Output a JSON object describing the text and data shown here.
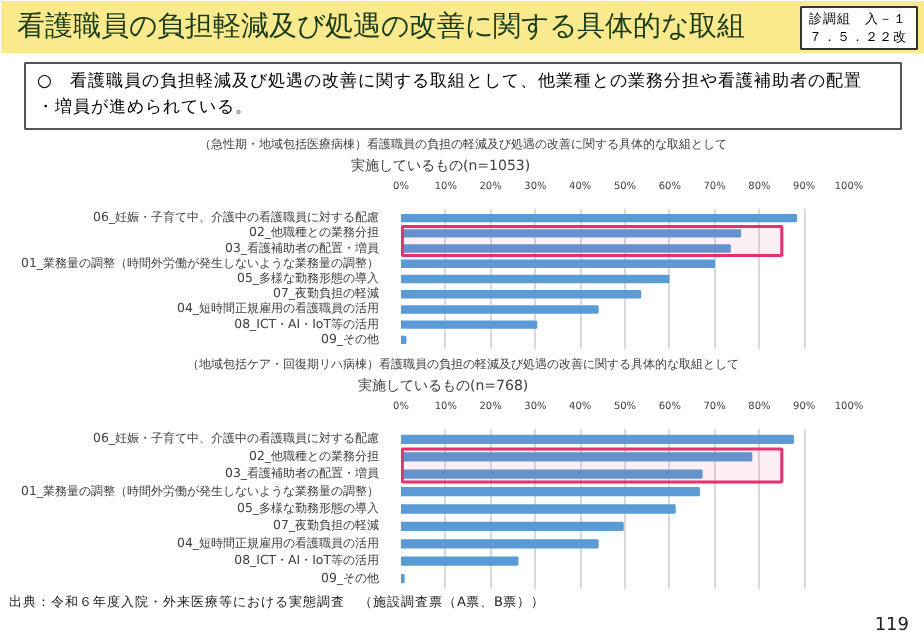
{
  "chart_data": [
    {
      "type": "other",
      "title": "看護職員の負担軽減及び処遇の改善に関する具体的な取組",
      "annotations": [
        "診調組　入－１",
        "７．５．２２改",
        "○　看護職員の負担軽減及び処遇の改善に関する取組として、他業種との業務分担や看護補助者の配置・増員が進められている。"
      ]
    },
    {
      "type": "bar",
      "orientation": "horizontal",
      "title": "（急性期・地域包括医療病棟）看護職員の負担の軽減及び処遇の改善に関する具体的な取組として",
      "subtitle": "実施しているもの(n=1053)",
      "categories": [
        "06_妊娠・子育て中、介護中の看護職員に対する配慮",
        "02_他職種との業務分担",
        "03_看護補助者の配置・増員",
        "01_業務量の調整（時間外労働が発生しないような業務量の調整）",
        "05_多様な勤務形態の導入",
        "07_夜勤負担の軽減",
        "04_短時間正規雇用の看護職員の活用",
        "08_ICT・AI・IoT等の活用",
        "09_その他"
      ],
      "values": [
        88.2,
        75.7,
        73.4,
        69.9,
        59.7,
        53.4,
        43.9,
        30.2,
        1
      ],
      "color": "#5b9bd5",
      "xlim": [
        0,
        100
      ],
      "xticks": [
        {
          "value": 0,
          "label": "0%"
        },
        {
          "value": 10,
          "label": "10%"
        },
        {
          "value": 20,
          "label": "20%"
        },
        {
          "value": 30,
          "label": "30%"
        },
        {
          "value": 40,
          "label": "40%"
        },
        {
          "value": 50,
          "label": "50%"
        },
        {
          "value": 60,
          "label": "60%"
        },
        {
          "value": 70,
          "label": "70%"
        },
        {
          "value": 80,
          "label": "80%"
        },
        {
          "value": 90,
          "label": "90%"
        },
        {
          "value": 100,
          "label": "100%"
        }
      ],
      "grid": "x",
      "bands": [
        {
          "axis": "y",
          "from": "02_他職種との業務分担",
          "to": "03_看護補助者の配置・増員",
          "color": "#e8306f"
        }
      ]
    },
    {
      "type": "bar",
      "orientation": "horizontal",
      "title": "（地域包括ケア・回復期リハ病棟）看護職員の負担の軽減及び処遇の改善に関する具体的な取組として",
      "subtitle": "実施しているもの(n=768)",
      "categories": [
        "06_妊娠・子育て中、介護中の看護職員に対する配慮",
        "02_他職種との業務分担",
        "03_看護補助者の配置・増員",
        "01_業務量の調整（時間外労働が発生しないような業務量の調整）",
        "05_多様な勤務形態の導入",
        "07_夜勤負担の軽減",
        "04_短時間正規雇用の看護職員の活用",
        "08_ICT・AI・IoT等の活用",
        "09_その他"
      ],
      "values": [
        87.5,
        78.2,
        67.1,
        66.5,
        61.1,
        49.5,
        43.9,
        26.0,
        0.6
      ],
      "color": "#5b9bd5",
      "xlim": [
        0,
        100
      ],
      "xticks": [
        {
          "value": 0,
          "label": "0%"
        },
        {
          "value": 10,
          "label": "10%"
        },
        {
          "value": 20,
          "label": "20%"
        },
        {
          "value": 30,
          "label": "30%"
        },
        {
          "value": 40,
          "label": "40%"
        },
        {
          "value": 50,
          "label": "50%"
        },
        {
          "value": 60,
          "label": "60%"
        },
        {
          "value": 70,
          "label": "70%"
        },
        {
          "value": 80,
          "label": "80%"
        },
        {
          "value": 90,
          "label": "90%"
        },
        {
          "value": 100,
          "label": "100%"
        }
      ],
      "grid": "x",
      "bands": [
        {
          "axis": "y",
          "from": "02_他職種との業務分担",
          "to": "03_看護補助者の配置・増員",
          "color": "#e8306f"
        }
      ],
      "annotations": [
        "出典：令和６年度入院・外来医療等における実態調査　（施設調査票（A票、B票））",
        "119"
      ]
    }
  ]
}
